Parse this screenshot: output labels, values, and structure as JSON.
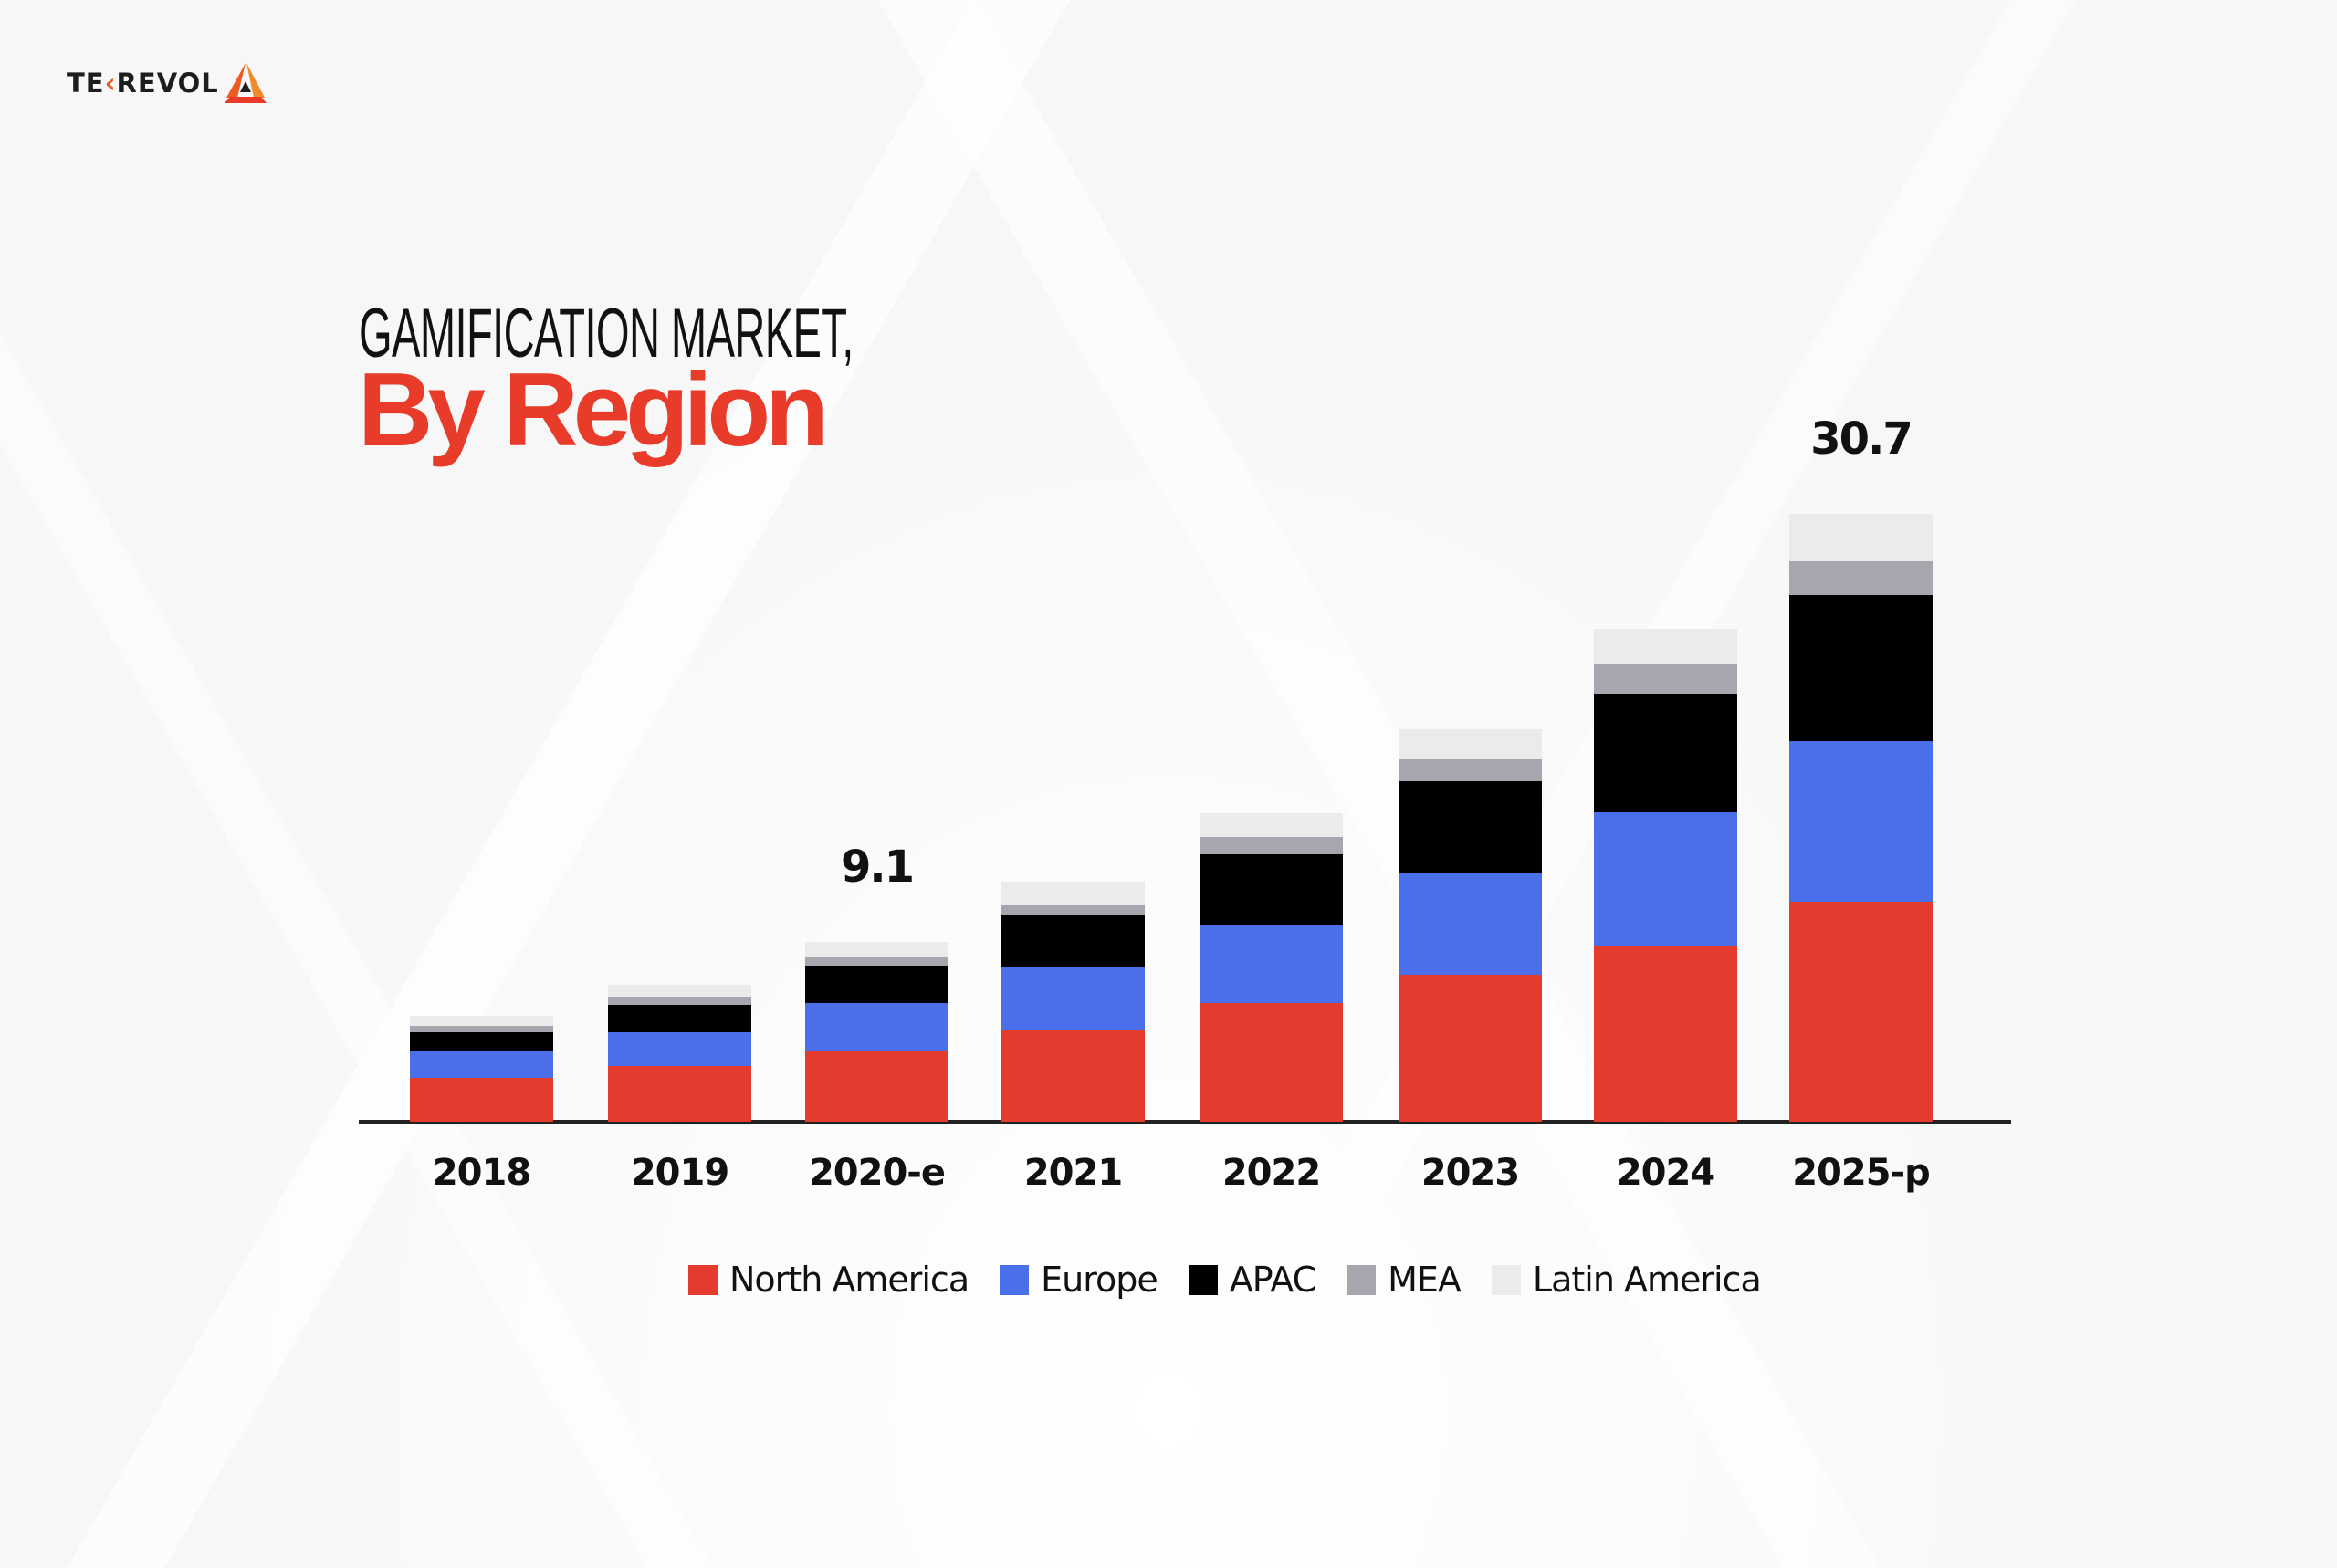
{
  "brand": {
    "logo_prefix": "TE",
    "logo_k": "‹",
    "logo_suffix": "REVOL",
    "logo_icon": "triangle-logo-icon"
  },
  "title": {
    "line1": "GAMIFICATION MARKET,",
    "line2": "By Region"
  },
  "colors": {
    "north_america": "#e43b2e",
    "europe": "#4a6fe8",
    "apac": "#000000",
    "mea": "#a7a5ae",
    "latin_america": "#ebebeb",
    "title_accent": "#e83b29",
    "background": "#f7f7f7"
  },
  "chart_data": {
    "type": "bar",
    "stacked": true,
    "title": "GAMIFICATION MARKET, By Region",
    "xlabel": "",
    "ylabel": "",
    "categories": [
      "2018",
      "2019",
      "2020-e",
      "2021",
      "2022",
      "2023",
      "2024",
      "2025-p"
    ],
    "series": [
      {
        "name": "North America",
        "color": "#e43b2e",
        "values": [
          2.2,
          2.8,
          3.6,
          4.6,
          6.0,
          7.4,
          8.9,
          11.1
        ]
      },
      {
        "name": "Europe",
        "color": "#4a6fe8",
        "values": [
          1.35,
          1.7,
          2.4,
          3.2,
          3.9,
          5.2,
          6.7,
          8.1
        ]
      },
      {
        "name": "APAC",
        "color": "#000000",
        "values": [
          0.95,
          1.4,
          1.9,
          2.6,
          3.6,
          4.6,
          6.0,
          7.4
        ]
      },
      {
        "name": "MEA",
        "color": "#a7a5ae",
        "values": [
          0.35,
          0.4,
          0.4,
          0.5,
          0.9,
          1.1,
          1.5,
          1.7
        ]
      },
      {
        "name": "Latin America",
        "color": "#ebebeb",
        "values": [
          0.5,
          0.6,
          0.8,
          1.2,
          1.2,
          1.5,
          1.8,
          2.4
        ]
      }
    ],
    "totals": [
      5.35,
      6.9,
      9.1,
      12.1,
      15.6,
      19.8,
      24.9,
      30.7
    ],
    "annotations": [
      {
        "category": "2020-e",
        "text": "9.1"
      },
      {
        "category": "2025-p",
        "text": "30.7"
      }
    ],
    "grid": false,
    "y_axis_visible": false,
    "legend_position": "bottom",
    "ylim": [
      0,
      31
    ]
  },
  "legend": [
    {
      "label": "North America",
      "color": "#e43b2e"
    },
    {
      "label": "Europe",
      "color": "#4a6fe8"
    },
    {
      "label": "APAC",
      "color": "#000000"
    },
    {
      "label": "MEA",
      "color": "#a7a5ae"
    },
    {
      "label": "Latin America",
      "color": "#ebebeb"
    }
  ]
}
